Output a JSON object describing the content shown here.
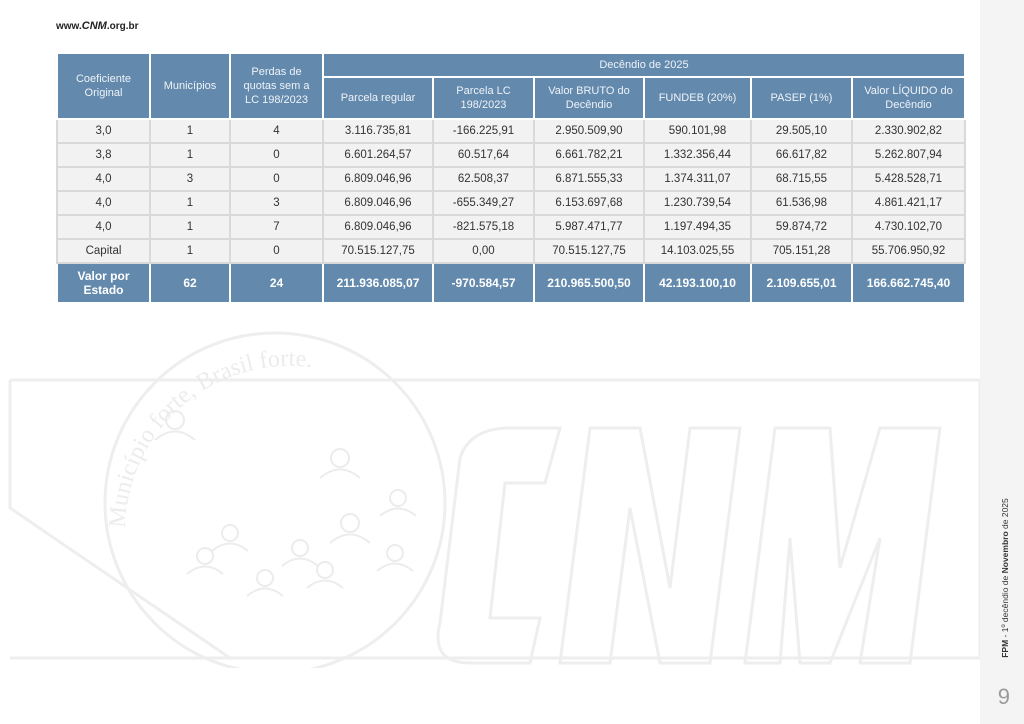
{
  "header": {
    "url_prefix": "www.",
    "url_brand": "CNM",
    "url_suffix": ".org.br"
  },
  "table": {
    "headers": {
      "coef": "Coeficiente Original",
      "municipios": "Municípios",
      "perdas": "Perdas de quotas sem a LC 198/2023",
      "group": "Decêndio de 2025",
      "parcela_regular": "Parcela regular",
      "parcela_lc": "Parcela LC 198/2023",
      "valor_bruto": "Valor BRUTO do Decêndio",
      "fundeb": "FUNDEB (20%)",
      "pasep": "PASEP (1%)",
      "valor_liquido": "Valor LÍQUIDO do Decêndio"
    },
    "rows": [
      [
        "3,0",
        "1",
        "4",
        "3.116.735,81",
        "-166.225,91",
        "2.950.509,90",
        "590.101,98",
        "29.505,10",
        "2.330.902,82"
      ],
      [
        "3,8",
        "1",
        "0",
        "6.601.264,57",
        "60.517,64",
        "6.661.782,21",
        "1.332.356,44",
        "66.617,82",
        "5.262.807,94"
      ],
      [
        "4,0",
        "3",
        "0",
        "6.809.046,96",
        "62.508,37",
        "6.871.555,33",
        "1.374.311,07",
        "68.715,55",
        "5.428.528,71"
      ],
      [
        "4,0",
        "1",
        "3",
        "6.809.046,96",
        "-655.349,27",
        "6.153.697,68",
        "1.230.739,54",
        "61.536,98",
        "4.861.421,17"
      ],
      [
        "4,0",
        "1",
        "7",
        "6.809.046,96",
        "-821.575,18",
        "5.987.471,77",
        "1.197.494,35",
        "59.874,72",
        "4.730.102,70"
      ],
      [
        "Capital",
        "1",
        "0",
        "70.515.127,75",
        "0,00",
        "70.515.127,75",
        "14.103.025,55",
        "705.151,28",
        "55.706.950,92"
      ]
    ],
    "total": [
      "Valor por Estado",
      "62",
      "24",
      "211.936.085,07",
      "-970.584,57",
      "210.965.500,50",
      "42.193.100,10",
      "2.109.655,01",
      "166.662.745,40"
    ]
  },
  "watermark": {
    "slogan": "Município forte, Brasil forte.",
    "logo_text": "CNM"
  },
  "footer": {
    "caption_prefix": "FPM",
    "caption_middle": " - 1º decêndio de ",
    "caption_month": "Novembro",
    "caption_suffix": " de 2025",
    "page_number": "9"
  },
  "colors": {
    "header_bg": "#6389ad",
    "negative": "#f0a04b",
    "cell_bg": "#f2f2f2"
  }
}
